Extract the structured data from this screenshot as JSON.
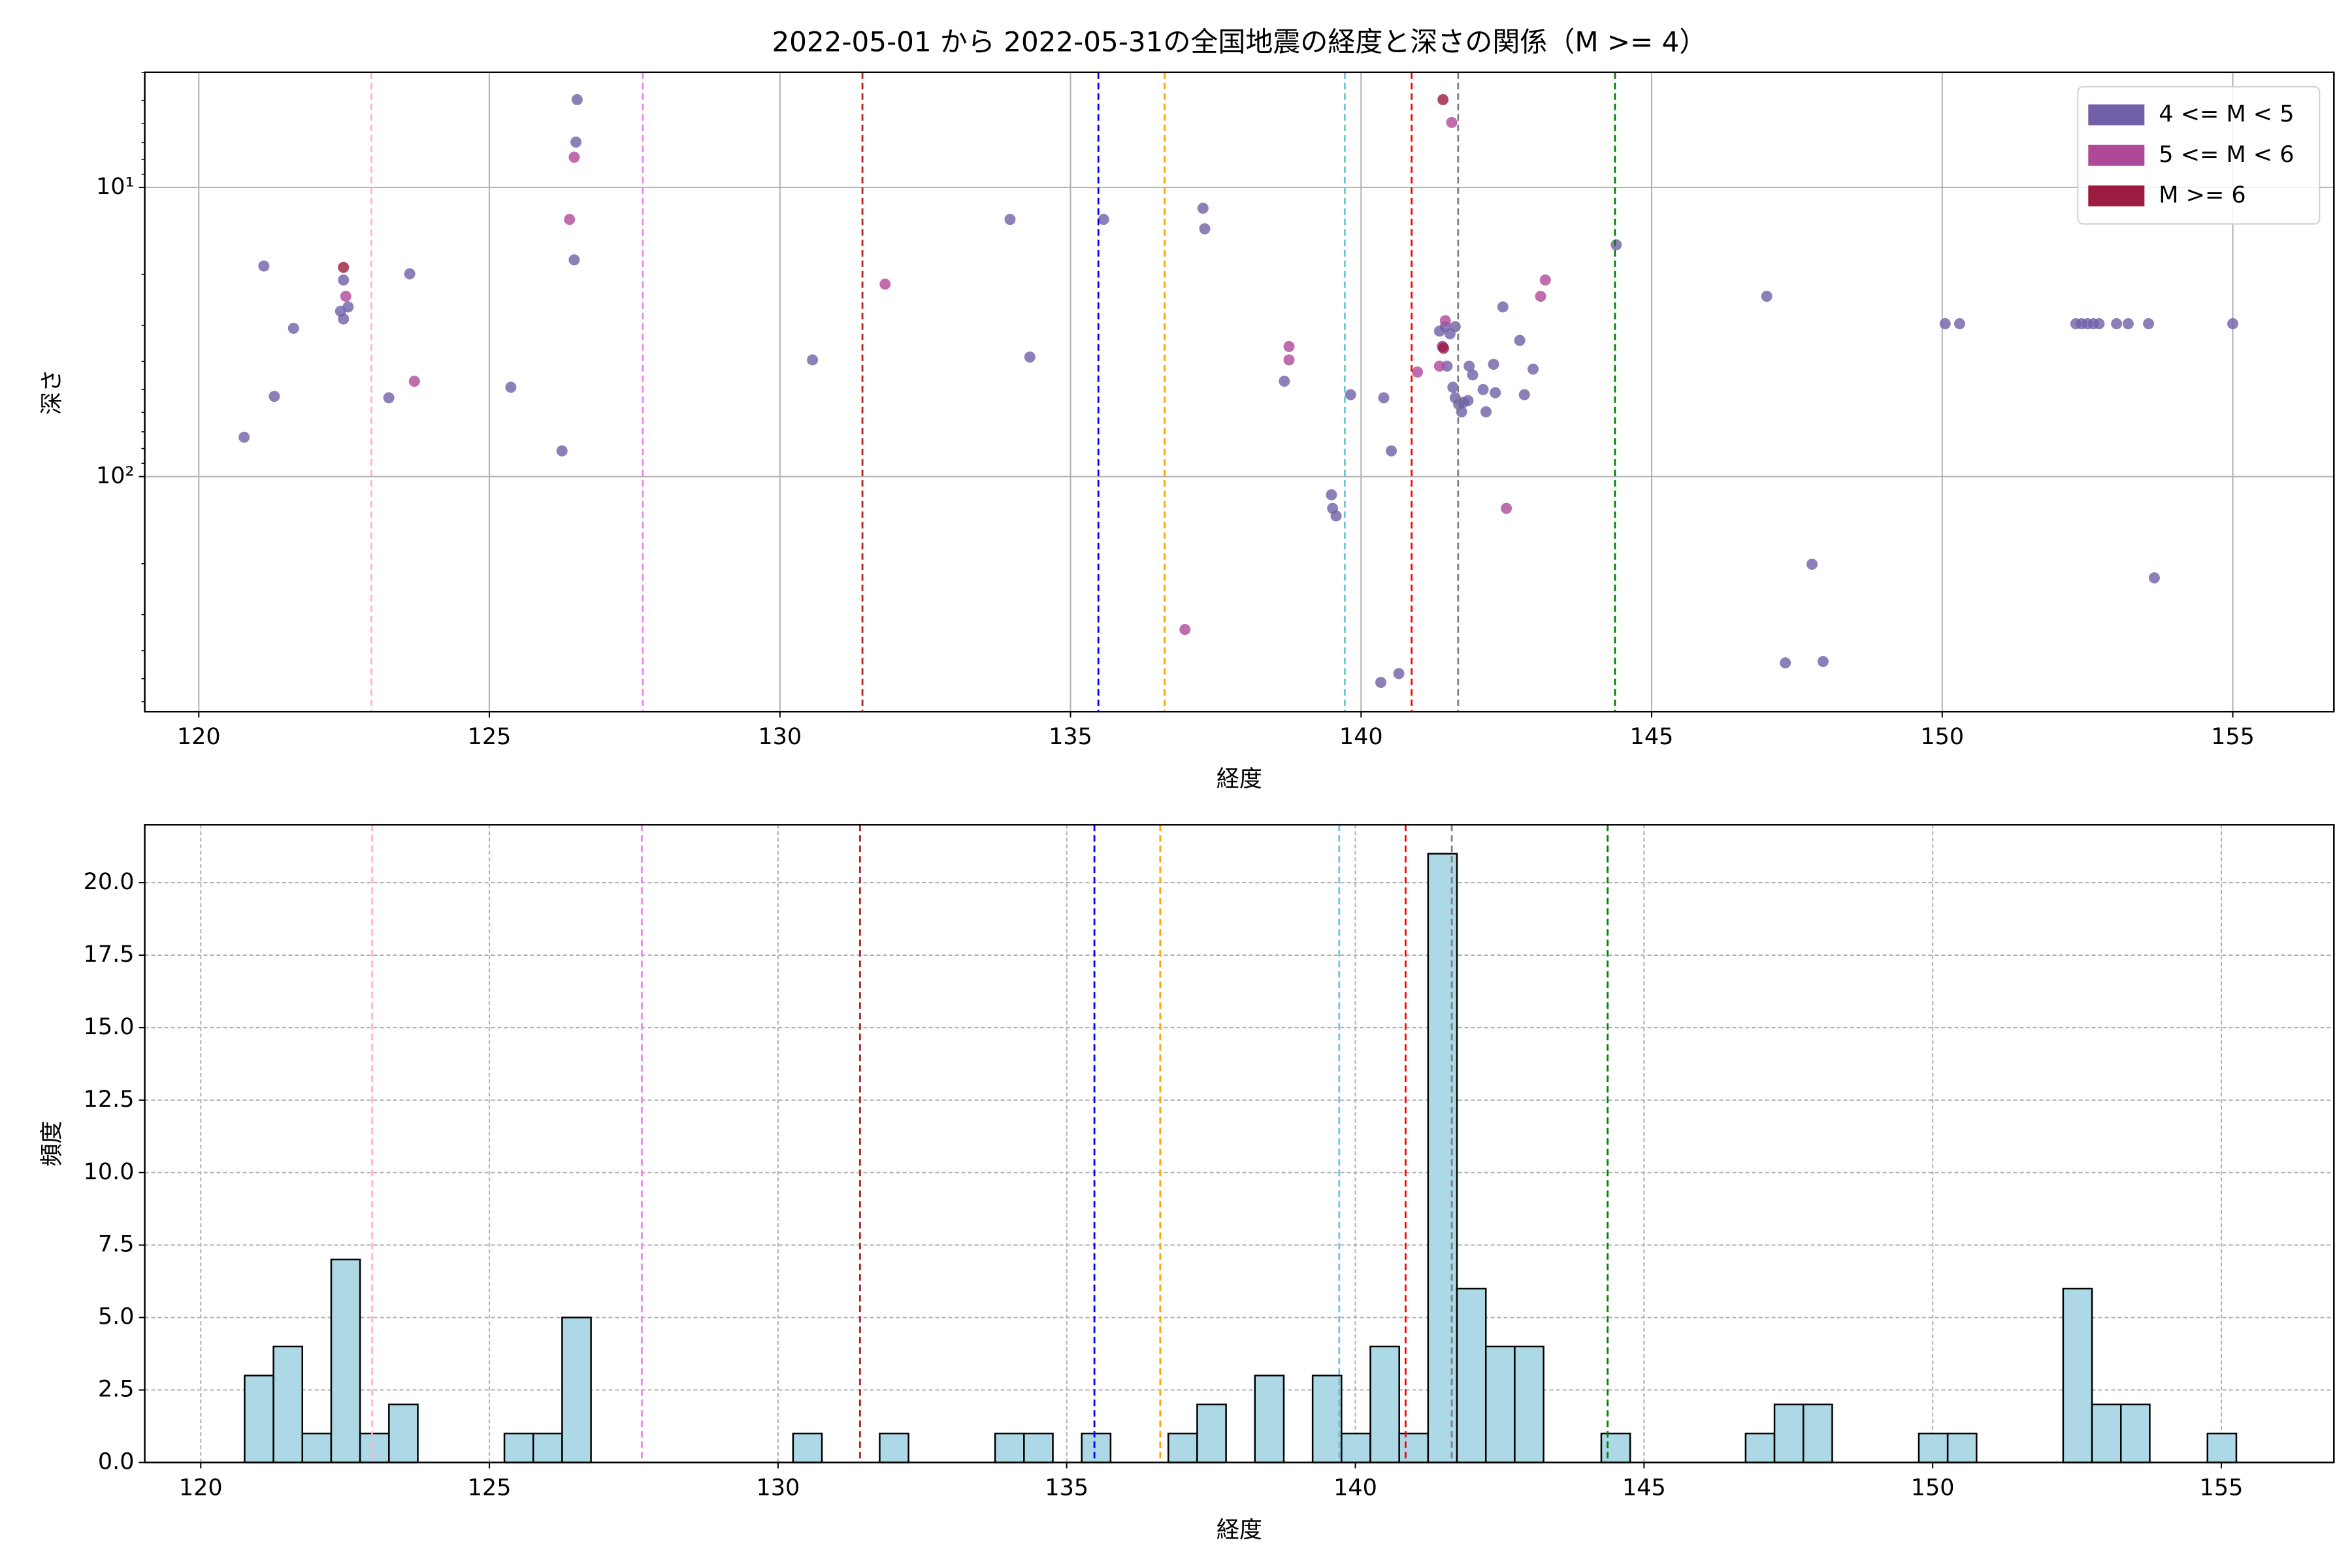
{
  "chart_data": [
    {
      "type": "scatter",
      "title": "2022-05-01 から 2022-05-31の全国地震の経度と深さの関係（M >= 4）",
      "xlabel": "経度",
      "ylabel": "深さ",
      "xlim": [
        119.07,
        156.74
      ],
      "xticks": [
        120,
        125,
        130,
        135,
        140,
        145,
        150,
        155
      ],
      "ylim": [
        650,
        4
      ],
      "ylog": true,
      "yticks": [
        {
          "value": 10,
          "label": "10¹"
        },
        {
          "value": 100,
          "label": "10²"
        }
      ],
      "yminorticks": [
        4,
        5,
        6,
        7,
        8,
        9,
        20,
        30,
        40,
        50,
        60,
        70,
        80,
        90,
        200,
        300,
        400,
        500,
        600
      ],
      "grid": true,
      "grid_style": "solid",
      "legend": "upper right",
      "vlines": [
        {
          "x": 122.97,
          "color": "#ffb6c1"
        },
        {
          "x": 127.64,
          "color": "#ee82ee"
        },
        {
          "x": 131.42,
          "color": "#b22222"
        },
        {
          "x": 135.48,
          "color": "#0000ff"
        },
        {
          "x": 136.62,
          "color": "#ffa500"
        },
        {
          "x": 139.72,
          "color": "#6ec6d8"
        },
        {
          "x": 140.87,
          "color": "#ff0000"
        },
        {
          "x": 141.67,
          "color": "#808080"
        },
        {
          "x": 144.37,
          "color": "#008000"
        }
      ],
      "series": [
        {
          "name": "4 <= M < 5",
          "color": "#7160a8",
          "x": [
            120.78,
            121.12,
            121.3,
            121.63,
            122.49,
            122.57,
            122.44,
            122.49,
            123.63,
            123.27,
            125.37,
            126.25,
            126.51,
            126.49,
            126.46,
            130.56,
            133.96,
            134.3,
            135.57,
            137.28,
            137.31,
            138.68,
            139.82,
            139.49,
            139.51,
            139.57,
            140.39,
            140.52,
            140.34,
            140.65,
            141.35,
            141.45,
            141.53,
            141.62,
            141.4,
            141.48,
            141.58,
            141.62,
            141.68,
            141.76,
            141.84,
            141.73,
            141.86,
            141.92,
            142.1,
            142.15,
            142.28,
            142.31,
            142.44,
            142.73,
            142.81,
            142.96,
            144.39,
            146.98,
            147.76,
            147.3,
            147.95,
            150.05,
            150.3,
            152.3,
            152.4,
            152.5,
            152.6,
            152.7,
            153.0,
            153.2,
            153.55,
            153.65,
            155.0
          ],
          "values": [
            73.1,
            18.7,
            52.8,
            30.7,
            20.9,
            25.9,
            26.8,
            28.5,
            19.9,
            53.4,
            49.1,
            81.5,
            4.97,
            6.97,
            17.8,
            39.5,
            12.9,
            38.6,
            12.9,
            11.8,
            13.9,
            46.8,
            52.1,
            115.6,
            128.8,
            136.8,
            53.4,
            81.5,
            515,
            480,
            31.4,
            30.3,
            32.1,
            30.3,
            35.5,
            41.5,
            49.1,
            53.4,
            56.2,
            55.4,
            54.6,
            59.7,
            41.5,
            44.5,
            50.0,
            59.7,
            40.9,
            51.3,
            25.9,
            33.8,
            52.1,
            42.5,
            15.8,
            23.8,
            201,
            441,
            436,
            29.6,
            29.6,
            29.6,
            29.6,
            29.6,
            29.6,
            29.6,
            29.6,
            29.6,
            29.6,
            224,
            29.6
          ]
        },
        {
          "name": "5 <= M < 6",
          "color": "#b0489a",
          "x": [
            122.53,
            123.71,
            126.46,
            126.38,
            131.81,
            136.97,
            138.76,
            138.76,
            140.97,
            141.56,
            141.45,
            141.4,
            141.35,
            143.09,
            143.17,
            142.5
          ],
          "values": [
            23.8,
            46.8,
            7.86,
            12.9,
            21.6,
            338,
            35.5,
            39.5,
            43.5,
            5.96,
            28.9,
            35.5,
            41.5,
            23.8,
            20.9,
            128.8
          ]
        },
        {
          "name": "M >= 6",
          "color": "#9b1c40",
          "x": [
            122.49,
            141.41,
            141.42
          ],
          "values": [
            18.9,
            4.97,
            36.0
          ]
        }
      ]
    },
    {
      "type": "histogram",
      "xlabel": "経度",
      "ylabel": "頻度",
      "xlim": [
        119.03,
        156.95
      ],
      "xticks": [
        120,
        125,
        130,
        135,
        140,
        145,
        150,
        155
      ],
      "ylim": [
        0,
        22
      ],
      "yticks": [
        {
          "value": 0,
          "label": "0.0"
        },
        {
          "value": 2.5,
          "label": "2.5"
        },
        {
          "value": 5,
          "label": "5.0"
        },
        {
          "value": 7.5,
          "label": "7.5"
        },
        {
          "value": 10,
          "label": "10.0"
        },
        {
          "value": 12.5,
          "label": "12.5"
        },
        {
          "value": 15,
          "label": "15.0"
        },
        {
          "value": 17.5,
          "label": "17.5"
        },
        {
          "value": 20,
          "label": "20.0"
        }
      ],
      "grid": true,
      "grid_style": "dashed",
      "color": "#add8e6",
      "edgecolor": "#000000",
      "vlines": [
        {
          "x": 122.97,
          "color": "#ffb6c1"
        },
        {
          "x": 127.64,
          "color": "#ee82ee"
        },
        {
          "x": 131.42,
          "color": "#b22222"
        },
        {
          "x": 135.48,
          "color": "#0000ff"
        },
        {
          "x": 136.62,
          "color": "#ffa500"
        },
        {
          "x": 139.72,
          "color": "#6ec6d8"
        },
        {
          "x": 140.87,
          "color": "#ff0000"
        },
        {
          "x": 141.67,
          "color": "#808080"
        },
        {
          "x": 144.37,
          "color": "#008000"
        }
      ],
      "bins": [
        120.76,
        121.26,
        121.76,
        122.26,
        122.76,
        123.26,
        123.76,
        124.26,
        124.76,
        125.26,
        125.76,
        126.26,
        126.76,
        127.26,
        127.76,
        128.26,
        128.76,
        129.26,
        129.76,
        130.26,
        130.76,
        131.26,
        131.76,
        132.26,
        132.76,
        133.26,
        133.76,
        134.26,
        134.76,
        135.26,
        135.76,
        136.26,
        136.76,
        137.26,
        137.76,
        138.26,
        138.76,
        139.26,
        139.76,
        140.26,
        140.76,
        141.26,
        141.76,
        142.26,
        142.76,
        143.26,
        143.76,
        144.26,
        144.76,
        145.26,
        145.76,
        146.26,
        146.76,
        147.26,
        147.76,
        148.26,
        148.76,
        149.26,
        149.76,
        150.26,
        150.76,
        151.26,
        151.76,
        152.26,
        152.76,
        153.26,
        153.76,
        154.26,
        154.76,
        155.26
      ],
      "values": [
        3,
        4,
        1,
        7,
        1,
        2,
        0,
        0,
        0,
        1,
        1,
        5,
        0,
        0,
        0,
        0,
        0,
        0,
        0,
        1,
        0,
        0,
        1,
        0,
        0,
        0,
        1,
        1,
        0,
        1,
        0,
        0,
        1,
        2,
        0,
        3,
        0,
        3,
        1,
        4,
        1,
        21,
        6,
        4,
        4,
        0,
        0,
        1,
        0,
        0,
        0,
        0,
        1,
        2,
        2,
        0,
        0,
        0,
        1,
        1,
        0,
        0,
        0,
        6,
        2,
        2,
        0,
        0,
        1
      ]
    }
  ]
}
